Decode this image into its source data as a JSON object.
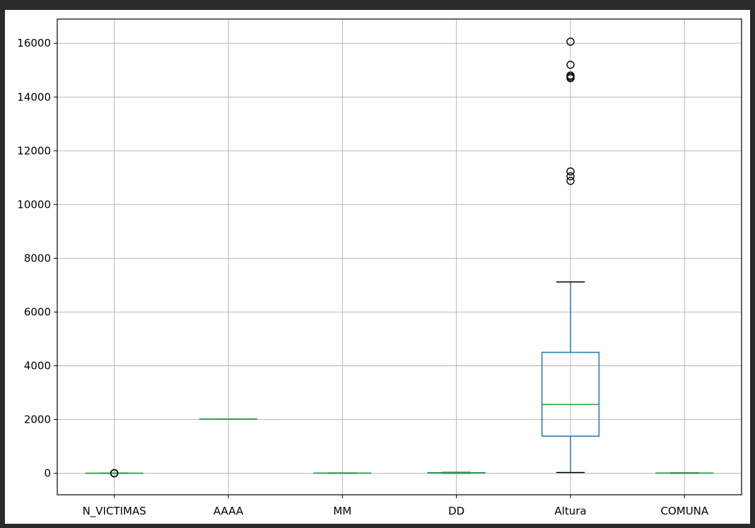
{
  "chart_data": {
    "type": "box",
    "categories": [
      "N_VICTIMAS",
      "AAAA",
      "MM",
      "DD",
      "Altura",
      "COMUNA"
    ],
    "boxes": [
      {
        "name": "N_VICTIMAS",
        "whisker_low": 1,
        "q1": 1,
        "median": 1,
        "q3": 1,
        "whisker_high": 1,
        "outliers": [
          2,
          3,
          4
        ]
      },
      {
        "name": "AAAA",
        "whisker_low": 2016,
        "q1": 2017,
        "median": 2018,
        "q3": 2020,
        "whisker_high": 2021,
        "outliers": []
      },
      {
        "name": "MM",
        "whisker_low": 1,
        "q1": 4,
        "median": 6,
        "q3": 9,
        "whisker_high": 12,
        "outliers": []
      },
      {
        "name": "DD",
        "whisker_low": 1,
        "q1": 8,
        "median": 16,
        "q3": 23,
        "whisker_high": 31,
        "outliers": []
      },
      {
        "name": "Altura",
        "whisker_low": 30,
        "q1": 1380,
        "median": 2560,
        "q3": 4500,
        "whisker_high": 7120,
        "outliers": [
          10880,
          11050,
          11230,
          14700,
          14750,
          14800,
          15200,
          16060
        ]
      },
      {
        "name": "COMUNA",
        "whisker_low": 1,
        "q1": 4,
        "median": 8,
        "q3": 11,
        "whisker_high": 15,
        "outliers": []
      }
    ],
    "y_ticks": [
      "0",
      "2000",
      "4000",
      "6000",
      "8000",
      "10000",
      "12000",
      "14000",
      "16000"
    ],
    "ylim": [
      -800,
      16900
    ],
    "grid": true,
    "colors": {
      "box": "#1f77b4",
      "median": "#2ca02c",
      "whisker_cap": "#000000",
      "grid": "#b0b0b0",
      "outlier_edge": "#000000"
    }
  }
}
